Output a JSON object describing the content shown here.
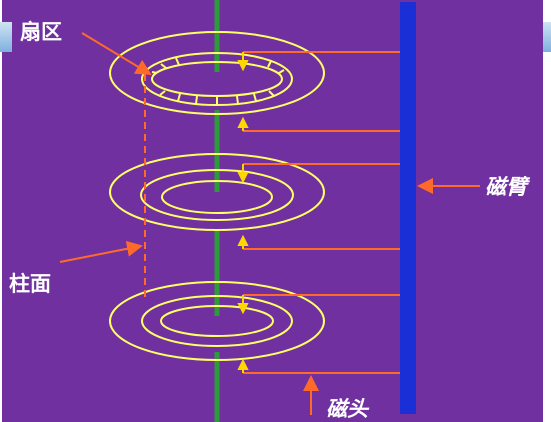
{
  "labels": {
    "sector": "扇区",
    "cylinder": "柱面",
    "arm": "磁臂",
    "head": "磁头"
  },
  "colors": {
    "background": "#7030a0",
    "track": "#ffff66",
    "spindle": "#2e9a3a",
    "arm": "#1a2fd6",
    "pointer": "#ff6a2a",
    "head": "#ffd700"
  }
}
